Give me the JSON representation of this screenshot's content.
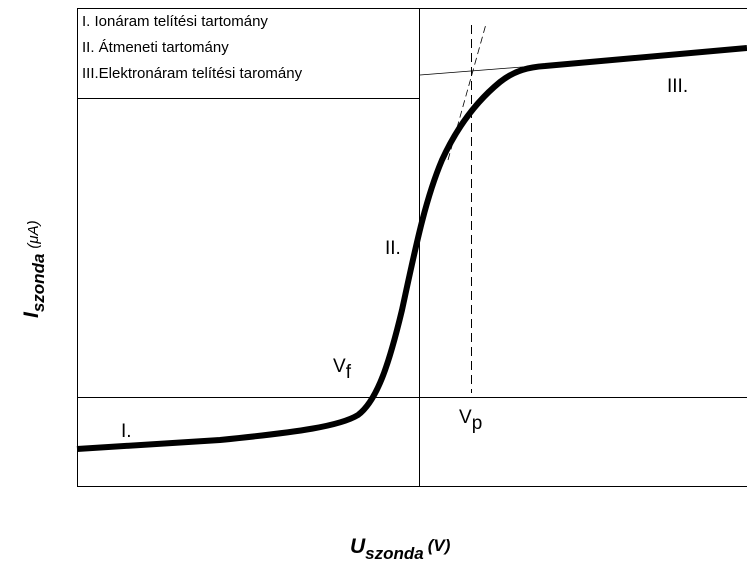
{
  "legend": [
    "I.  Ionáram telítési tartomány",
    "II. Átmeneti tartomány",
    "III.Elektronáram telítési taromány"
  ],
  "regions": [
    "I.",
    "II.",
    "III."
  ],
  "vf": {
    "symbol": "V",
    "sub": "f"
  },
  "vp": {
    "symbol": "V",
    "sub": "p"
  },
  "y_label": {
    "symbol": "I",
    "sub": "szonda",
    "unit": "(μA)"
  },
  "x_label": {
    "symbol": "U",
    "sub": "szonda",
    "unit": "(V)"
  }
}
